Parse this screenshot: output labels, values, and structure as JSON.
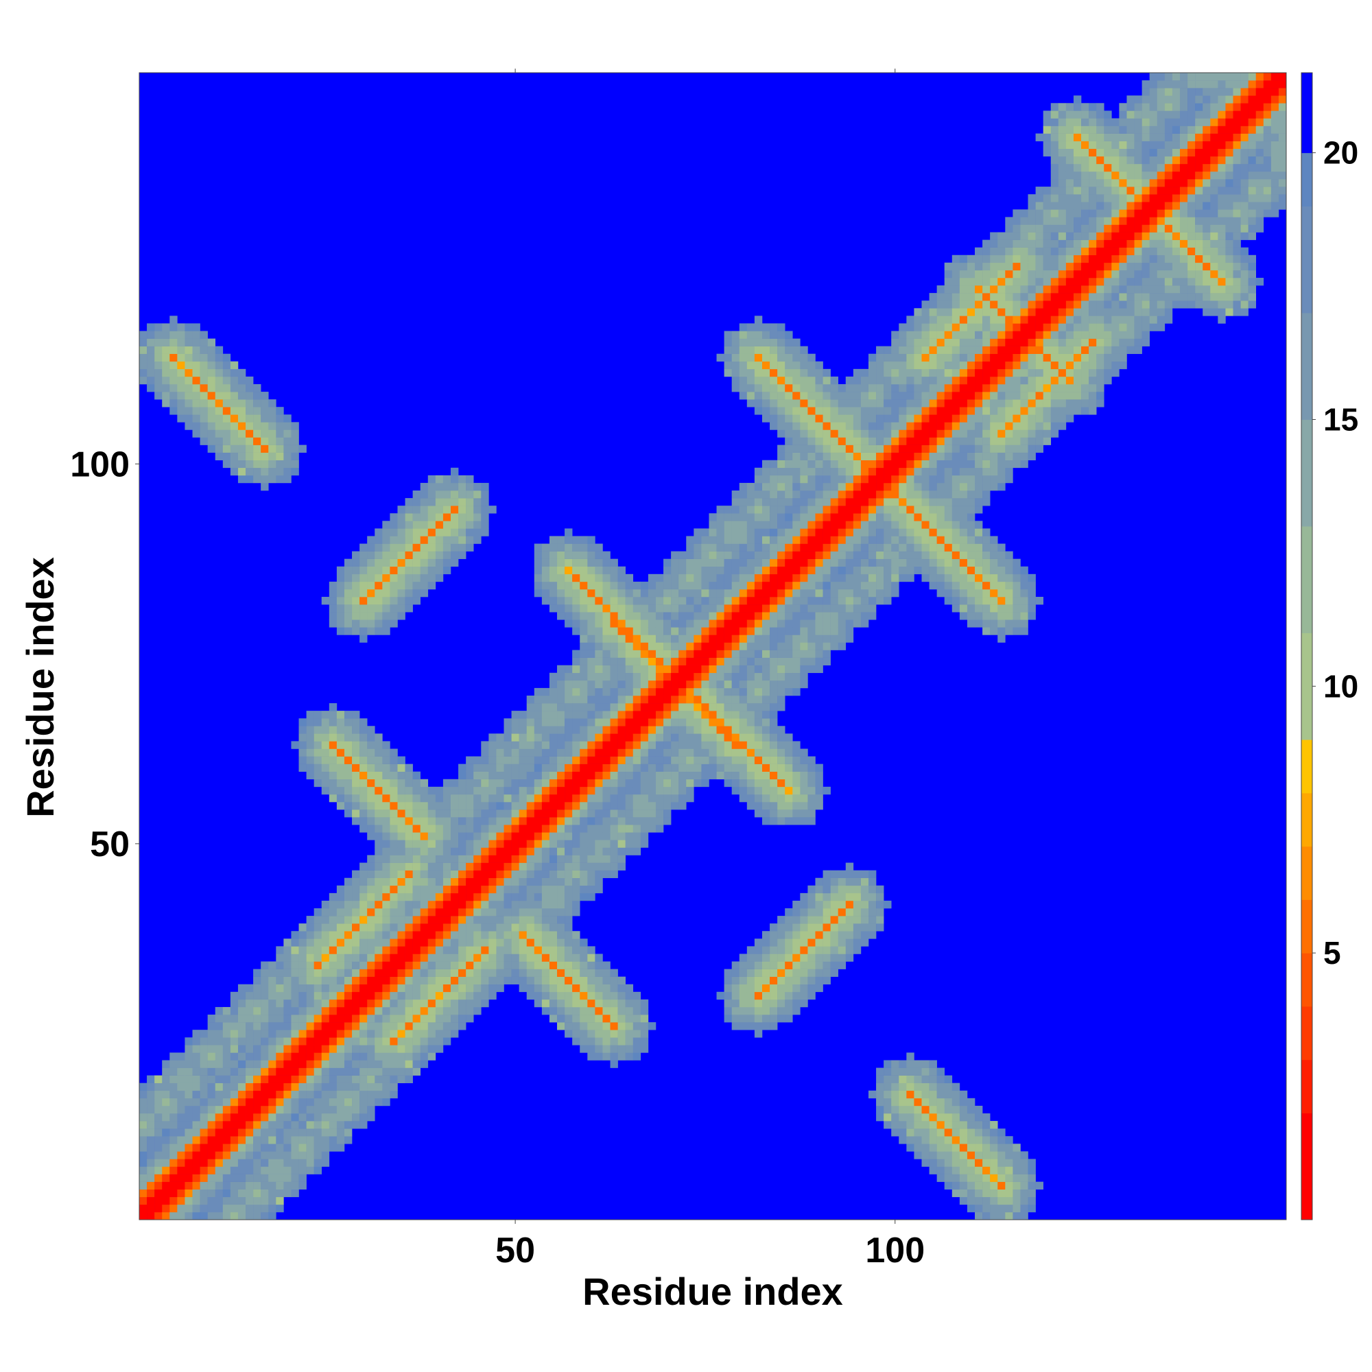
{
  "chart_data": {
    "type": "heatmap",
    "title": "",
    "xlabel": "Residue index",
    "ylabel": "Residue index",
    "x_range": [
      1,
      151
    ],
    "y_range": [
      1,
      151
    ],
    "x_ticks": [
      50,
      100
    ],
    "x_tick_labels": [
      "50",
      "100"
    ],
    "y_ticks": [
      50,
      100
    ],
    "y_tick_labels": [
      "50",
      "100"
    ],
    "colorbar": {
      "range": [
        0,
        21.5
      ],
      "ticks": [
        5,
        10,
        15,
        20
      ],
      "tick_labels": [
        "5",
        "10",
        "15",
        "20"
      ],
      "colors": [
        {
          "min": 0,
          "max": 2,
          "color": "#ff0000"
        },
        {
          "min": 2,
          "max": 3,
          "color": "#ff1e00"
        },
        {
          "min": 3,
          "max": 4,
          "color": "#ff3c00"
        },
        {
          "min": 4,
          "max": 5,
          "color": "#ff5500"
        },
        {
          "min": 5,
          "max": 6,
          "color": "#ff7000"
        },
        {
          "min": 6,
          "max": 7,
          "color": "#ff8c00"
        },
        {
          "min": 7,
          "max": 8,
          "color": "#ffa800"
        },
        {
          "min": 8,
          "max": 9,
          "color": "#ffc400"
        },
        {
          "min": 9,
          "max": 11,
          "color": "#a8c48c"
        },
        {
          "min": 11,
          "max": 13,
          "color": "#98b898"
        },
        {
          "min": 13,
          "max": 15,
          "color": "#88a8a8"
        },
        {
          "min": 15,
          "max": 17,
          "color": "#7898b0"
        },
        {
          "min": 17,
          "max": 19,
          "color": "#6a8cba"
        },
        {
          "min": 19,
          "max": 20,
          "color": "#5e86c0"
        },
        {
          "min": 20,
          "max": 21.5,
          "color": "#0000ff"
        }
      ]
    },
    "background_color": "#0000ff",
    "structure": {
      "main_diagonal": {
        "from": 1,
        "to": 151
      },
      "antiparallel_contacts": [
        {
          "center": [
            98,
            98
          ],
          "length": 16
        },
        {
          "center": [
            71,
            71
          ],
          "length": 8
        },
        {
          "center": [
            117,
            117
          ],
          "length": 6
        },
        {
          "center": [
            32,
            57
          ],
          "length": 6
        },
        {
          "center": [
            57,
            32
          ],
          "length": 6
        },
        {
          "center": [
            92,
            104
          ],
          "length": 5
        },
        {
          "center": [
            104,
            92
          ],
          "length": 5
        },
        {
          "center": [
            108,
            11
          ],
          "length": 6
        },
        {
          "center": [
            11,
            108
          ],
          "length": 6
        },
        {
          "center": [
            130,
            137
          ],
          "length": 6
        },
        {
          "center": [
            137,
            130
          ],
          "length": 6
        },
        {
          "center": [
            63,
            80
          ],
          "length": 6
        },
        {
          "center": [
            80,
            63
          ],
          "length": 6
        }
      ],
      "parallel_contacts": [
        {
          "center": [
            40,
            30
          ],
          "length": 6
        },
        {
          "center": [
            30,
            40
          ],
          "length": 6
        },
        {
          "center": [
            88,
            36
          ],
          "length": 6
        },
        {
          "center": [
            36,
            88
          ],
          "length": 6
        },
        {
          "center": [
            110,
            120
          ],
          "length": 6
        },
        {
          "center": [
            120,
            110
          ],
          "length": 6
        }
      ]
    }
  }
}
